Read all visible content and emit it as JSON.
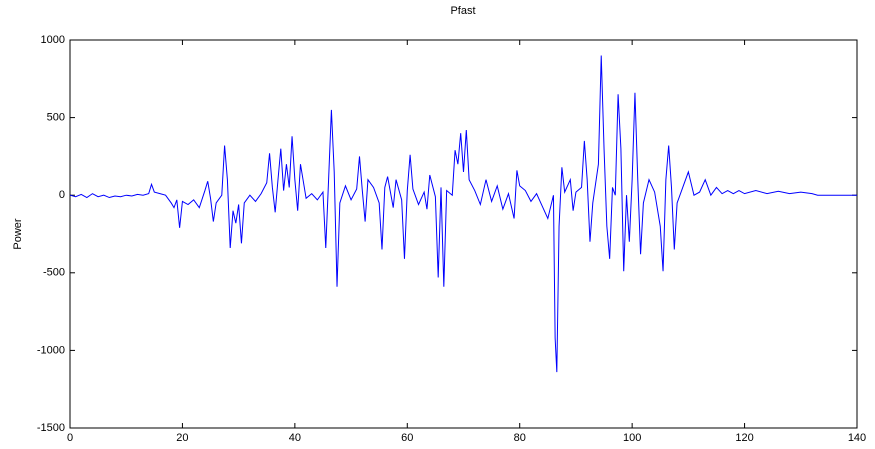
{
  "chart_data": {
    "type": "line",
    "title": "Pfast",
    "ylabel": "Power",
    "x": [
      0,
      1,
      2,
      3,
      4,
      5,
      6,
      7,
      8,
      9,
      10,
      11,
      12,
      13,
      14,
      14.5,
      15,
      16,
      17,
      18,
      18.5,
      19,
      19.5,
      20,
      21,
      22,
      23,
      24,
      24.5,
      25,
      25.5,
      26,
      27,
      27.5,
      28,
      28.5,
      29,
      29.5,
      30,
      30.5,
      31,
      32,
      33,
      34,
      35,
      35.5,
      36,
      36.5,
      37,
      37.5,
      38,
      38.5,
      39,
      39.5,
      40,
      40.5,
      41,
      42,
      43,
      44,
      45,
      45.5,
      46,
      46.5,
      47,
      47.5,
      48,
      49,
      50,
      51,
      51.5,
      52,
      52.5,
      53,
      54,
      55,
      55.5,
      56,
      56.5,
      57,
      57.5,
      58,
      59,
      59.5,
      60,
      60.5,
      61,
      62,
      63,
      63.5,
      64,
      65,
      65.5,
      66,
      66.5,
      67,
      68,
      68.5,
      69,
      69.5,
      70,
      70.5,
      71,
      72,
      73,
      74,
      75,
      76,
      77,
      78,
      79,
      79.5,
      80,
      81,
      82,
      83,
      84,
      85,
      86,
      86.3,
      86.6,
      87,
      87.5,
      88,
      89,
      89.5,
      90,
      91,
      91.5,
      92,
      92.5,
      93,
      94,
      94.5,
      95,
      95.5,
      96,
      96.5,
      97,
      97.5,
      98,
      98.5,
      99,
      99.5,
      100,
      100.5,
      101,
      101.5,
      102,
      103,
      104,
      105,
      105.5,
      106,
      106.5,
      107,
      107.5,
      108,
      109,
      110,
      111,
      112,
      113,
      114,
      115,
      116,
      117,
      118,
      119,
      120,
      122,
      124,
      126,
      128,
      130,
      132,
      133,
      140
    ],
    "series": [
      {
        "name": "Pfast",
        "color": "#0000ff",
        "values": [
          0,
          -10,
          5,
          -15,
          10,
          -10,
          0,
          -15,
          -5,
          -10,
          0,
          -5,
          5,
          0,
          10,
          70,
          20,
          10,
          0,
          -50,
          -80,
          -30,
          -210,
          -40,
          -60,
          -30,
          -80,
          30,
          90,
          -20,
          -170,
          -50,
          0,
          320,
          100,
          -340,
          -100,
          -180,
          -60,
          -310,
          -50,
          0,
          -40,
          10,
          80,
          270,
          50,
          -110,
          100,
          300,
          30,
          200,
          50,
          380,
          100,
          -100,
          200,
          -20,
          10,
          -30,
          20,
          -340,
          100,
          550,
          150,
          -590,
          -50,
          60,
          -30,
          40,
          250,
          30,
          -170,
          100,
          50,
          -50,
          -350,
          50,
          120,
          20,
          -80,
          100,
          -30,
          -410,
          30,
          260,
          40,
          -60,
          20,
          -90,
          130,
          -10,
          -530,
          50,
          -590,
          30,
          0,
          290,
          200,
          400,
          150,
          420,
          100,
          30,
          -60,
          100,
          -40,
          60,
          -90,
          10,
          -150,
          160,
          60,
          30,
          -40,
          10,
          -70,
          -150,
          0,
          -920,
          -1140,
          -200,
          180,
          20,
          100,
          -100,
          20,
          50,
          350,
          100,
          -300,
          -50,
          200,
          900,
          300,
          -200,
          -410,
          50,
          0,
          650,
          300,
          -490,
          0,
          -300,
          100,
          660,
          100,
          -380,
          -50,
          100,
          20,
          -200,
          -490,
          100,
          320,
          50,
          -350,
          -50,
          50,
          150,
          0,
          20,
          100,
          0,
          50,
          10,
          30,
          10,
          30,
          10,
          30,
          10,
          25,
          10,
          20,
          10,
          0,
          0
        ]
      }
    ],
    "xlim": [
      0,
      140
    ],
    "xticks": [
      0,
      20,
      40,
      60,
      80,
      100,
      120,
      140
    ],
    "ylim": [
      -1500,
      1000
    ],
    "yticks": [
      -1500,
      -1000,
      -500,
      0,
      500,
      1000
    ],
    "grid": false
  }
}
